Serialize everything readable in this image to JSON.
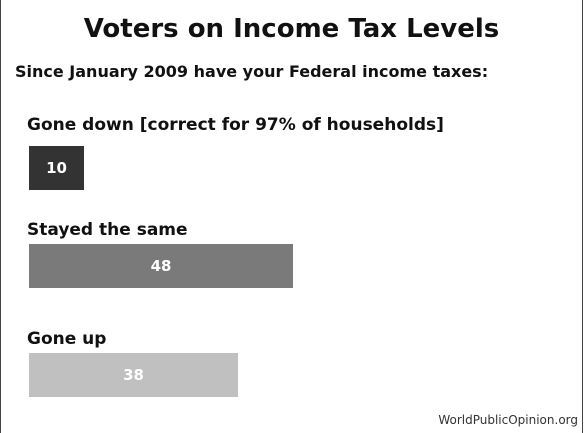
{
  "chart_data": {
    "type": "bar",
    "orientation": "horizontal",
    "title": "Voters on Income Tax Levels",
    "subtitle": "Since January 2009 have your Federal income taxes:",
    "categories": [
      "Gone down [correct for 97% of households]",
      "Stayed the same",
      "Gone up"
    ],
    "values": [
      10,
      48,
      38
    ],
    "colors": [
      "#333333",
      "#7a7a7a",
      "#c0c0c0"
    ],
    "xlim": [
      0,
      100
    ],
    "grid": false,
    "source": "WorldPublicOpinion.org"
  }
}
